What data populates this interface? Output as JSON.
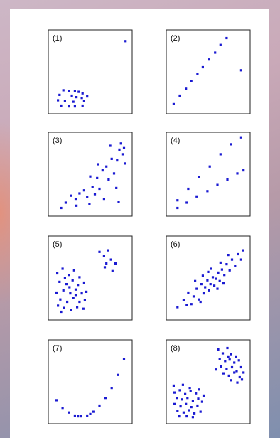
{
  "colors": {
    "points": "#1a1ad2",
    "frame": "#222222",
    "sheet": "#ffffff"
  },
  "chart_data": [
    {
      "type": "scatter",
      "label": "(1)",
      "xlim": [
        0,
        10
      ],
      "ylim": [
        0,
        10
      ],
      "points": [
        [
          9.6,
          9.0
        ],
        [
          1.5,
          2.6
        ],
        [
          2.2,
          2.5
        ],
        [
          3.0,
          2.5
        ],
        [
          3.5,
          2.4
        ],
        [
          4.0,
          2.2
        ],
        [
          1.0,
          2.0
        ],
        [
          2.6,
          1.9
        ],
        [
          3.2,
          1.7
        ],
        [
          3.9,
          1.6
        ],
        [
          4.6,
          1.8
        ],
        [
          0.8,
          1.3
        ],
        [
          1.7,
          1.2
        ],
        [
          2.8,
          1.1
        ],
        [
          4.2,
          1.2
        ],
        [
          1.2,
          0.6
        ],
        [
          2.2,
          0.5
        ],
        [
          3.0,
          0.5
        ],
        [
          4.0,
          0.6
        ]
      ]
    },
    {
      "type": "scatter",
      "label": "(2)",
      "xlim": [
        0,
        10
      ],
      "ylim": [
        0,
        10
      ],
      "points": [
        [
          0.5,
          0.8
        ],
        [
          1.3,
          1.9
        ],
        [
          2.1,
          2.8
        ],
        [
          2.8,
          3.8
        ],
        [
          3.6,
          4.7
        ],
        [
          4.3,
          5.6
        ],
        [
          5.1,
          6.6
        ],
        [
          5.9,
          7.5
        ],
        [
          6.6,
          8.5
        ],
        [
          7.4,
          9.4
        ],
        [
          9.3,
          5.2
        ]
      ]
    },
    {
      "type": "scatter",
      "label": "(3)",
      "xlim": [
        0,
        10
      ],
      "ylim": [
        0,
        10
      ],
      "points": [
        [
          1.2,
          0.6
        ],
        [
          1.8,
          1.3
        ],
        [
          2.5,
          2.2
        ],
        [
          3.1,
          1.8
        ],
        [
          3.6,
          2.5
        ],
        [
          4.2,
          2.9
        ],
        [
          4.6,
          2.0
        ],
        [
          5.3,
          3.3
        ],
        [
          5.0,
          4.7
        ],
        [
          5.9,
          4.5
        ],
        [
          6.2,
          3.1
        ],
        [
          6.6,
          5.5
        ],
        [
          7.1,
          6.0
        ],
        [
          7.4,
          4.3
        ],
        [
          7.8,
          7.0
        ],
        [
          8.1,
          5.1
        ],
        [
          8.5,
          6.8
        ],
        [
          8.8,
          8.2
        ],
        [
          9.2,
          7.6
        ],
        [
          9.5,
          6.4
        ],
        [
          9.0,
          9.0
        ],
        [
          8.4,
          3.2
        ],
        [
          8.7,
          1.4
        ],
        [
          6.8,
          1.8
        ],
        [
          4.9,
          1.1
        ],
        [
          3.2,
          0.9
        ],
        [
          9.4,
          8.4
        ],
        [
          7.6,
          8.7
        ],
        [
          6.0,
          6.3
        ],
        [
          5.6,
          2.4
        ]
      ]
    },
    {
      "type": "scatter",
      "label": "(4)",
      "xlim": [
        0,
        10
      ],
      "ylim": [
        0,
        10
      ],
      "points": [
        [
          1.0,
          0.6
        ],
        [
          2.2,
          1.3
        ],
        [
          3.5,
          2.1
        ],
        [
          4.9,
          2.8
        ],
        [
          6.2,
          3.6
        ],
        [
          7.5,
          4.3
        ],
        [
          8.8,
          5.1
        ],
        [
          9.6,
          5.5
        ],
        [
          1.0,
          1.6
        ],
        [
          2.4,
          3.1
        ],
        [
          3.8,
          4.6
        ],
        [
          5.2,
          6.0
        ],
        [
          6.6,
          7.6
        ],
        [
          8.0,
          8.9
        ],
        [
          9.3,
          9.8
        ]
      ]
    },
    {
      "type": "scatter",
      "label": "(5)",
      "xlim": [
        0,
        10
      ],
      "ylim": [
        0,
        10
      ],
      "points": [
        [
          6.2,
          8.4
        ],
        [
          6.8,
          7.9
        ],
        [
          7.3,
          8.6
        ],
        [
          7.7,
          7.4
        ],
        [
          8.3,
          6.9
        ],
        [
          6.9,
          6.4
        ],
        [
          7.9,
          5.9
        ],
        [
          7.1,
          6.9
        ],
        [
          0.7,
          5.6
        ],
        [
          1.4,
          6.2
        ],
        [
          2.2,
          5.4
        ],
        [
          2.9,
          6.0
        ],
        [
          3.6,
          5.1
        ],
        [
          1.0,
          4.5
        ],
        [
          1.9,
          4.2
        ],
        [
          2.7,
          4.7
        ],
        [
          3.4,
          4.1
        ],
        [
          4.2,
          4.4
        ],
        [
          0.6,
          3.1
        ],
        [
          1.5,
          3.4
        ],
        [
          2.4,
          3.0
        ],
        [
          3.1,
          3.5
        ],
        [
          3.9,
          3.0
        ],
        [
          4.5,
          3.2
        ],
        [
          1.1,
          2.2
        ],
        [
          2.0,
          1.9
        ],
        [
          2.8,
          2.4
        ],
        [
          3.6,
          1.9
        ],
        [
          4.3,
          2.1
        ],
        [
          1.6,
          1.1
        ],
        [
          2.5,
          0.8
        ],
        [
          3.3,
          1.2
        ],
        [
          4.1,
          1.0
        ],
        [
          0.8,
          1.4
        ],
        [
          1.7,
          5.0
        ],
        [
          3.1,
          2.8
        ],
        [
          2.3,
          3.8
        ],
        [
          1.2,
          0.6
        ]
      ]
    },
    {
      "type": "scatter",
      "label": "(6)",
      "xlim": [
        0,
        10
      ],
      "ylim": [
        0,
        10
      ],
      "points": [
        [
          1.0,
          1.2
        ],
        [
          1.8,
          2.1
        ],
        [
          2.4,
          3.1
        ],
        [
          2.8,
          1.6
        ],
        [
          3.1,
          2.6
        ],
        [
          3.5,
          3.6
        ],
        [
          3.8,
          2.2
        ],
        [
          4.1,
          4.2
        ],
        [
          4.4,
          3.0
        ],
        [
          4.6,
          3.8
        ],
        [
          4.9,
          4.7
        ],
        [
          5.1,
          3.4
        ],
        [
          5.3,
          4.2
        ],
        [
          5.6,
          5.1
        ],
        [
          5.8,
          4.0
        ],
        [
          6.0,
          4.9
        ],
        [
          6.3,
          5.7
        ],
        [
          6.5,
          4.6
        ],
        [
          6.8,
          6.1
        ],
        [
          7.1,
          5.4
        ],
        [
          7.4,
          6.8
        ],
        [
          7.8,
          6.0
        ],
        [
          8.1,
          7.4
        ],
        [
          8.5,
          6.6
        ],
        [
          8.9,
          8.1
        ],
        [
          9.3,
          7.4
        ],
        [
          9.5,
          8.6
        ],
        [
          3.3,
          4.6
        ],
        [
          4.3,
          5.3
        ],
        [
          5.4,
          6.2
        ],
        [
          6.6,
          7.0
        ],
        [
          7.6,
          8.0
        ],
        [
          5.0,
          5.8
        ],
        [
          4.0,
          1.9
        ],
        [
          6.2,
          3.6
        ],
        [
          7.0,
          4.3
        ],
        [
          2.2,
          1.5
        ]
      ]
    },
    {
      "type": "scatter",
      "label": "(7)",
      "xlim": [
        0,
        10
      ],
      "ylim": [
        0,
        10
      ],
      "points": [
        [
          0.6,
          2.6
        ],
        [
          1.4,
          1.6
        ],
        [
          2.2,
          1.0
        ],
        [
          3.0,
          0.6
        ],
        [
          3.8,
          0.5
        ],
        [
          4.6,
          0.6
        ],
        [
          5.4,
          1.1
        ],
        [
          6.2,
          1.9
        ],
        [
          7.0,
          2.9
        ],
        [
          7.8,
          4.2
        ],
        [
          8.6,
          5.9
        ],
        [
          9.4,
          8.0
        ],
        [
          3.4,
          0.5
        ],
        [
          5.0,
          0.8
        ]
      ]
    },
    {
      "type": "scatter",
      "label": "(8)",
      "xlim": [
        0,
        10
      ],
      "ylim": [
        0,
        10
      ],
      "points": [
        [
          6.3,
          9.2
        ],
        [
          6.9,
          8.7
        ],
        [
          7.5,
          9.4
        ],
        [
          8.0,
          8.6
        ],
        [
          6.5,
          8.0
        ],
        [
          7.2,
          7.7
        ],
        [
          7.8,
          7.9
        ],
        [
          8.4,
          7.5
        ],
        [
          9.0,
          7.8
        ],
        [
          6.7,
          7.0
        ],
        [
          7.4,
          6.7
        ],
        [
          8.1,
          6.9
        ],
        [
          8.7,
          6.4
        ],
        [
          9.3,
          6.9
        ],
        [
          7.0,
          6.1
        ],
        [
          7.7,
          5.8
        ],
        [
          8.4,
          6.2
        ],
        [
          9.1,
          5.6
        ],
        [
          9.6,
          6.2
        ],
        [
          8.0,
          5.2
        ],
        [
          8.8,
          4.9
        ],
        [
          9.4,
          5.3
        ],
        [
          7.6,
          8.3
        ],
        [
          8.6,
          8.3
        ],
        [
          6.0,
          6.6
        ],
        [
          0.6,
          3.6
        ],
        [
          1.3,
          3.9
        ],
        [
          2.0,
          3.4
        ],
        [
          2.7,
          3.8
        ],
        [
          3.4,
          3.5
        ],
        [
          0.9,
          2.9
        ],
        [
          1.6,
          2.7
        ],
        [
          2.3,
          2.9
        ],
        [
          3.0,
          2.5
        ],
        [
          3.7,
          2.8
        ],
        [
          0.6,
          2.1
        ],
        [
          1.4,
          1.8
        ],
        [
          2.1,
          2.1
        ],
        [
          2.8,
          1.7
        ],
        [
          3.6,
          1.9
        ],
        [
          4.2,
          2.4
        ],
        [
          1.0,
          1.2
        ],
        [
          1.8,
          1.0
        ],
        [
          2.5,
          1.3
        ],
        [
          3.2,
          0.9
        ],
        [
          4.0,
          1.1
        ],
        [
          2.2,
          0.5
        ],
        [
          3.0,
          0.4
        ],
        [
          4.4,
          3.2
        ],
        [
          0.5,
          4.5
        ],
        [
          1.7,
          4.6
        ],
        [
          2.6,
          4.2
        ],
        [
          3.8,
          4.0
        ],
        [
          1.2,
          0.5
        ]
      ]
    }
  ]
}
